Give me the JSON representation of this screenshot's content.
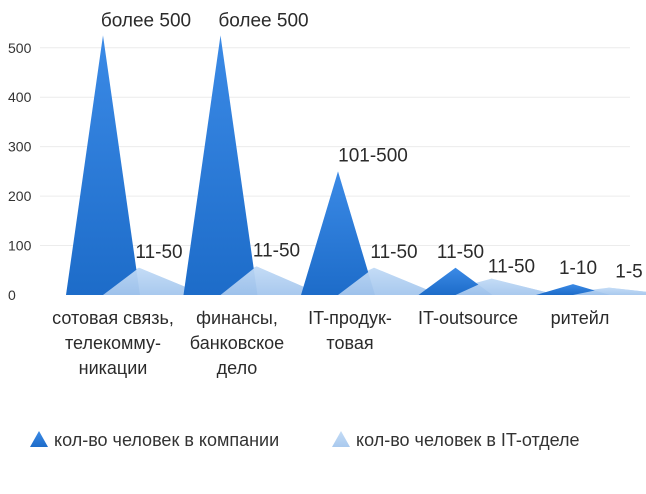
{
  "chart_data": {
    "type": "area",
    "shape": "triangle",
    "categories": [
      [
        "сотовая связь,",
        "телекомму-",
        "никации"
      ],
      [
        "финансы,",
        "банковское",
        "дело"
      ],
      [
        "IT-продук-",
        "товая"
      ],
      [
        "IT-outsource"
      ],
      [
        "ритейл"
      ]
    ],
    "series": [
      {
        "name": "кол-во человек в компании",
        "color": "#2f7fdb",
        "values": [
          525,
          525,
          250,
          55,
          22
        ],
        "labels": [
          "более 500",
          "более 500",
          "101-500",
          "11-50",
          "1-10"
        ]
      },
      {
        "name": "кол-во человек в IT-отделе",
        "color": "#b3cff0",
        "values": [
          55,
          58,
          55,
          33,
          15
        ],
        "labels": [
          "11-50",
          "11-50",
          "11-50",
          "11-50",
          "1-5"
        ]
      }
    ],
    "ylim": [
      0,
      550
    ],
    "yticks": [
      0,
      100,
      200,
      300,
      400,
      500
    ],
    "grid": true,
    "legend": "bottom"
  }
}
